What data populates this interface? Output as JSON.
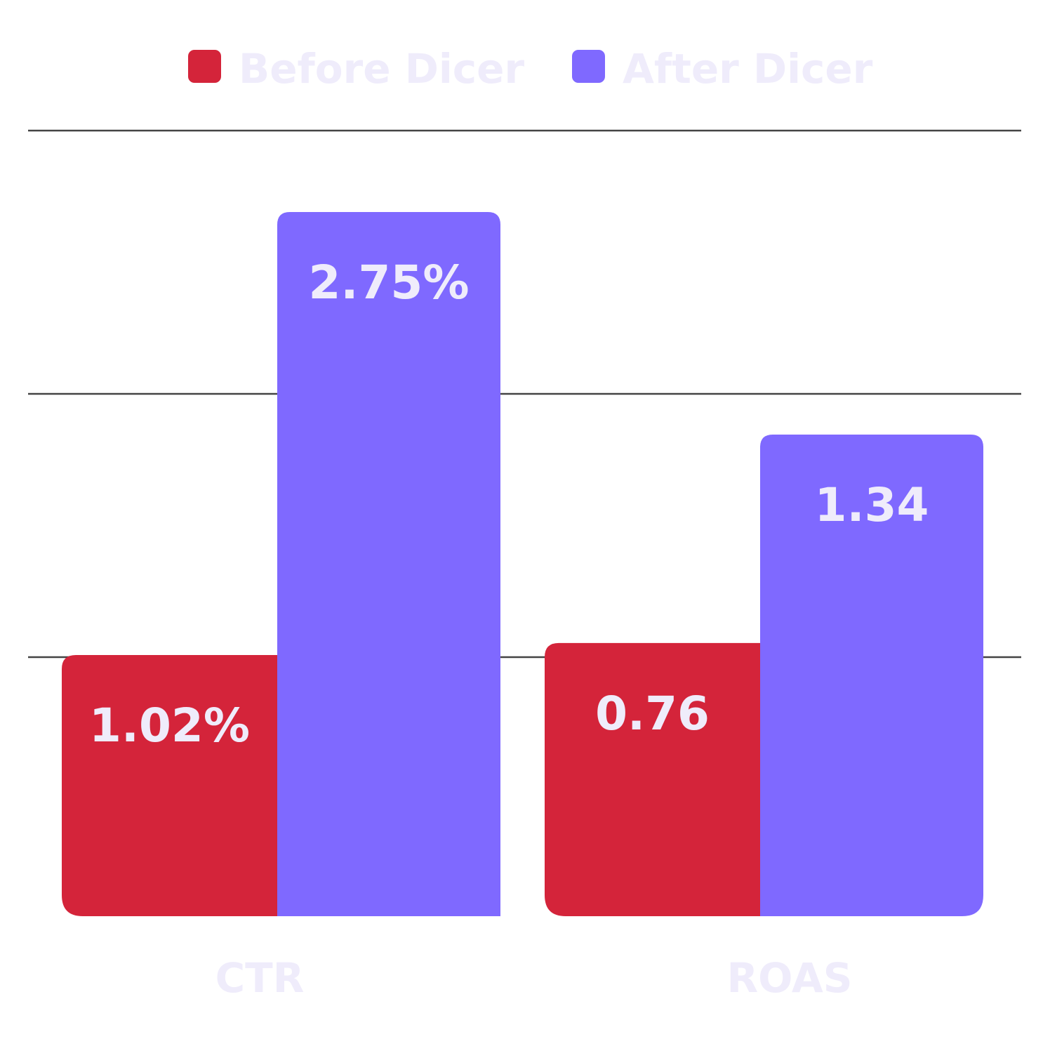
{
  "colors": {
    "before": "#d4243a",
    "after": "#7f69ff",
    "label_text": "#efecfb",
    "gridline": "#444444"
  },
  "legend": {
    "items": [
      {
        "label": "Before Dicer",
        "color": "#d4243a"
      },
      {
        "label": "After Dicer",
        "color": "#7f69ff"
      }
    ],
    "position": "top-center"
  },
  "chart_data": [
    {
      "type": "bar",
      "categories": [
        "CTR"
      ],
      "series": [
        {
          "name": "Before Dicer",
          "values": [
            1.02
          ],
          "labels": [
            "1.02%"
          ]
        },
        {
          "name": "After Dicer",
          "values": [
            2.75
          ],
          "labels": [
            "2.75%"
          ]
        }
      ],
      "title": "",
      "xlabel": "",
      "ylabel": "",
      "ylim": [
        0,
        3.4
      ],
      "grid": true
    },
    {
      "type": "bar",
      "categories": [
        "ROAS"
      ],
      "series": [
        {
          "name": "Before Dicer",
          "values": [
            0.76
          ],
          "labels": [
            "0.76"
          ]
        },
        {
          "name": "After Dicer",
          "values": [
            1.34
          ],
          "labels": [
            "1.34"
          ]
        }
      ],
      "title": "",
      "xlabel": "",
      "ylabel": "",
      "ylim": [
        0,
        1.78
      ],
      "grid": true
    }
  ]
}
